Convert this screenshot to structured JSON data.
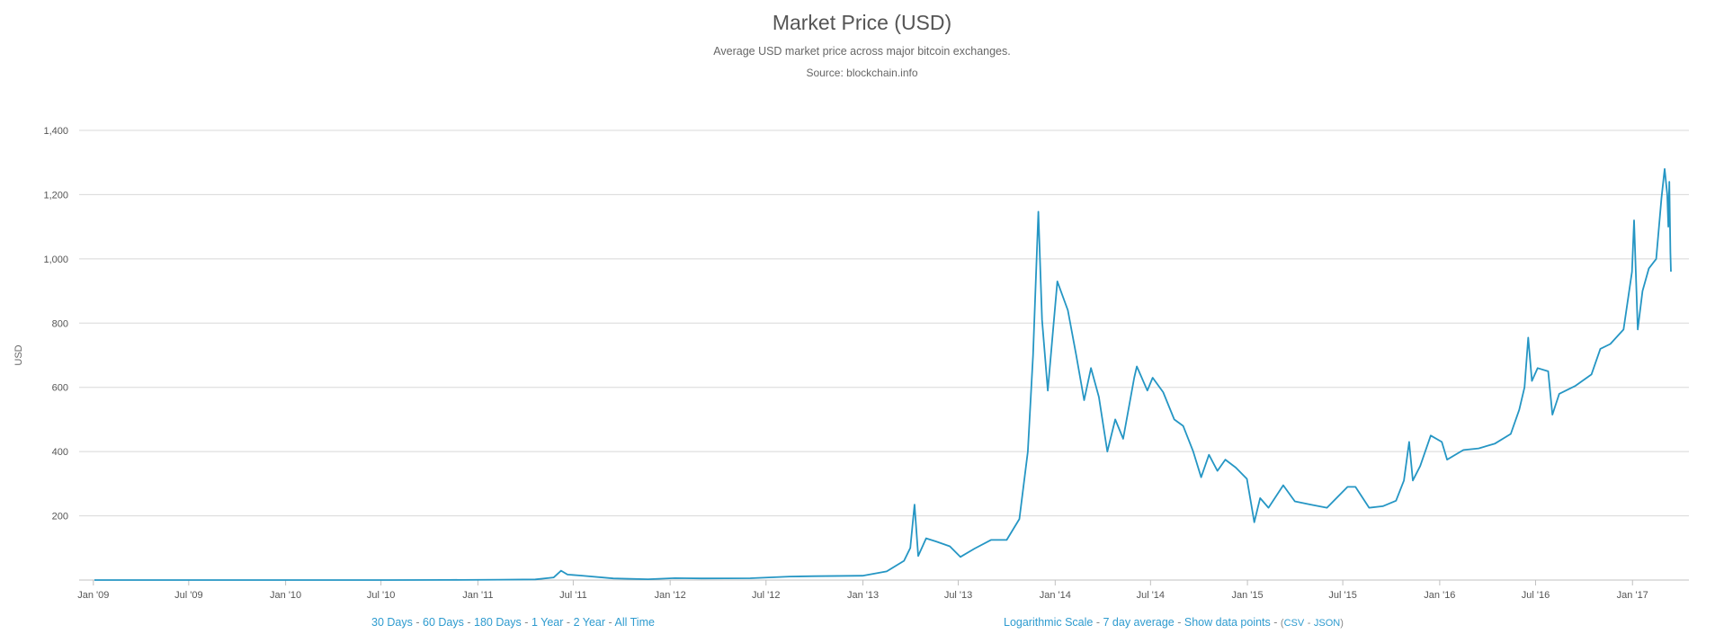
{
  "header": {
    "title": "Market Price (USD)",
    "subtitle": "Average USD market price across major bitcoin exchanges.",
    "source": "Source: blockchain.info"
  },
  "footer": {
    "ranges": [
      "30 Days",
      "60 Days",
      "180 Days",
      "1 Year",
      "2 Year",
      "All Time"
    ],
    "options": {
      "log_scale": "Logarithmic Scale",
      "avg": "7 day average",
      "show_points": "Show data points",
      "csv": "CSV",
      "json": "JSON",
      "open_paren": "(",
      "close_paren": ")"
    },
    "separator": "-"
  },
  "chart_data": {
    "type": "line",
    "ylabel": "USD",
    "ylim": [
      0,
      1400
    ],
    "yticks": [
      200,
      400,
      600,
      800,
      1000,
      1200,
      1400
    ],
    "ytick_labels": [
      "200",
      "400",
      "600",
      "800",
      "1,000",
      "1,200",
      "1,400"
    ],
    "xlim": [
      "2009-01-03",
      "2017-03-15"
    ],
    "xticks": [
      {
        "date": "2009-01-01",
        "label": "Jan '09"
      },
      {
        "date": "2009-07-01",
        "label": "Jul '09"
      },
      {
        "date": "2010-01-01",
        "label": "Jan '10"
      },
      {
        "date": "2010-07-01",
        "label": "Jul '10"
      },
      {
        "date": "2011-01-01",
        "label": "Jan '11"
      },
      {
        "date": "2011-07-01",
        "label": "Jul '11"
      },
      {
        "date": "2012-01-01",
        "label": "Jan '12"
      },
      {
        "date": "2012-07-01",
        "label": "Jul '12"
      },
      {
        "date": "2013-01-01",
        "label": "Jan '13"
      },
      {
        "date": "2013-07-01",
        "label": "Jul '13"
      },
      {
        "date": "2014-01-01",
        "label": "Jan '14"
      },
      {
        "date": "2014-07-01",
        "label": "Jul '14"
      },
      {
        "date": "2015-01-01",
        "label": "Jan '15"
      },
      {
        "date": "2015-07-01",
        "label": "Jul '15"
      },
      {
        "date": "2016-01-01",
        "label": "Jan '16"
      },
      {
        "date": "2016-07-01",
        "label": "Jul '16"
      },
      {
        "date": "2017-01-01",
        "label": "Jan '17"
      }
    ],
    "grid": true,
    "line_color": "#2596c4",
    "series": [
      {
        "points": [
          [
            "2009-01-03",
            0
          ],
          [
            "2010-07-17",
            0.05
          ],
          [
            "2010-11-01",
            0.3
          ],
          [
            "2011-02-10",
            1
          ],
          [
            "2011-04-20",
            2
          ],
          [
            "2011-05-25",
            8
          ],
          [
            "2011-06-08",
            29
          ],
          [
            "2011-06-20",
            17
          ],
          [
            "2011-07-15",
            14
          ],
          [
            "2011-09-15",
            5
          ],
          [
            "2011-11-20",
            2.5
          ],
          [
            "2012-01-10",
            6
          ],
          [
            "2012-03-01",
            5
          ],
          [
            "2012-06-01",
            5.5
          ],
          [
            "2012-08-15",
            11
          ],
          [
            "2012-10-01",
            12
          ],
          [
            "2012-12-31",
            13.5
          ],
          [
            "2013-02-15",
            27
          ],
          [
            "2013-03-20",
            60
          ],
          [
            "2013-04-01",
            100
          ],
          [
            "2013-04-09",
            235
          ],
          [
            "2013-04-16",
            75
          ],
          [
            "2013-05-01",
            130
          ],
          [
            "2013-05-20",
            120
          ],
          [
            "2013-06-15",
            105
          ],
          [
            "2013-07-05",
            72
          ],
          [
            "2013-08-01",
            98
          ],
          [
            "2013-09-01",
            125
          ],
          [
            "2013-10-01",
            125
          ],
          [
            "2013-10-25",
            190
          ],
          [
            "2013-11-10",
            400
          ],
          [
            "2013-11-20",
            700
          ],
          [
            "2013-11-30",
            1147
          ],
          [
            "2013-12-07",
            810
          ],
          [
            "2013-12-18",
            590
          ],
          [
            "2013-12-28",
            780
          ],
          [
            "2014-01-05",
            930
          ],
          [
            "2014-01-25",
            840
          ],
          [
            "2014-02-10",
            700
          ],
          [
            "2014-02-25",
            560
          ],
          [
            "2014-03-10",
            660
          ],
          [
            "2014-03-25",
            570
          ],
          [
            "2014-04-10",
            400
          ],
          [
            "2014-04-25",
            500
          ],
          [
            "2014-05-10",
            440
          ],
          [
            "2014-05-31",
            630
          ],
          [
            "2014-06-05",
            665
          ],
          [
            "2014-06-25",
            590
          ],
          [
            "2014-07-05",
            630
          ],
          [
            "2014-07-25",
            585
          ],
          [
            "2014-08-15",
            500
          ],
          [
            "2014-09-01",
            480
          ],
          [
            "2014-09-20",
            400
          ],
          [
            "2014-10-05",
            320
          ],
          [
            "2014-10-20",
            390
          ],
          [
            "2014-11-05",
            340
          ],
          [
            "2014-11-20",
            375
          ],
          [
            "2014-12-10",
            350
          ],
          [
            "2014-12-31",
            315
          ],
          [
            "2015-01-14",
            180
          ],
          [
            "2015-01-25",
            255
          ],
          [
            "2015-02-10",
            225
          ],
          [
            "2015-03-10",
            295
          ],
          [
            "2015-04-01",
            245
          ],
          [
            "2015-05-01",
            235
          ],
          [
            "2015-06-01",
            225
          ],
          [
            "2015-07-10",
            290
          ],
          [
            "2015-07-25",
            290
          ],
          [
            "2015-08-20",
            225
          ],
          [
            "2015-09-15",
            230
          ],
          [
            "2015-10-10",
            247
          ],
          [
            "2015-10-25",
            310
          ],
          [
            "2015-11-04",
            430
          ],
          [
            "2015-11-11",
            310
          ],
          [
            "2015-11-25",
            355
          ],
          [
            "2015-12-15",
            450
          ],
          [
            "2016-01-05",
            430
          ],
          [
            "2016-01-15",
            375
          ],
          [
            "2016-02-15",
            405
          ],
          [
            "2016-03-15",
            410
          ],
          [
            "2016-04-15",
            425
          ],
          [
            "2016-05-15",
            455
          ],
          [
            "2016-05-31",
            530
          ],
          [
            "2016-06-10",
            600
          ],
          [
            "2016-06-17",
            755
          ],
          [
            "2016-06-24",
            620
          ],
          [
            "2016-07-05",
            660
          ],
          [
            "2016-07-25",
            650
          ],
          [
            "2016-08-02",
            515
          ],
          [
            "2016-08-15",
            580
          ],
          [
            "2016-09-15",
            605
          ],
          [
            "2016-10-15",
            640
          ],
          [
            "2016-11-01",
            720
          ],
          [
            "2016-11-20",
            735
          ],
          [
            "2016-12-15",
            780
          ],
          [
            "2016-12-31",
            960
          ],
          [
            "2017-01-04",
            1120
          ],
          [
            "2017-01-11",
            780
          ],
          [
            "2017-01-20",
            900
          ],
          [
            "2017-02-01",
            970
          ],
          [
            "2017-02-15",
            1000
          ],
          [
            "2017-02-25",
            1190
          ],
          [
            "2017-03-03",
            1280
          ],
          [
            "2017-03-08",
            1200
          ],
          [
            "2017-03-10",
            1100
          ],
          [
            "2017-03-12",
            1240
          ],
          [
            "2017-03-14",
            1020
          ],
          [
            "2017-03-15",
            960
          ]
        ]
      }
    ]
  }
}
